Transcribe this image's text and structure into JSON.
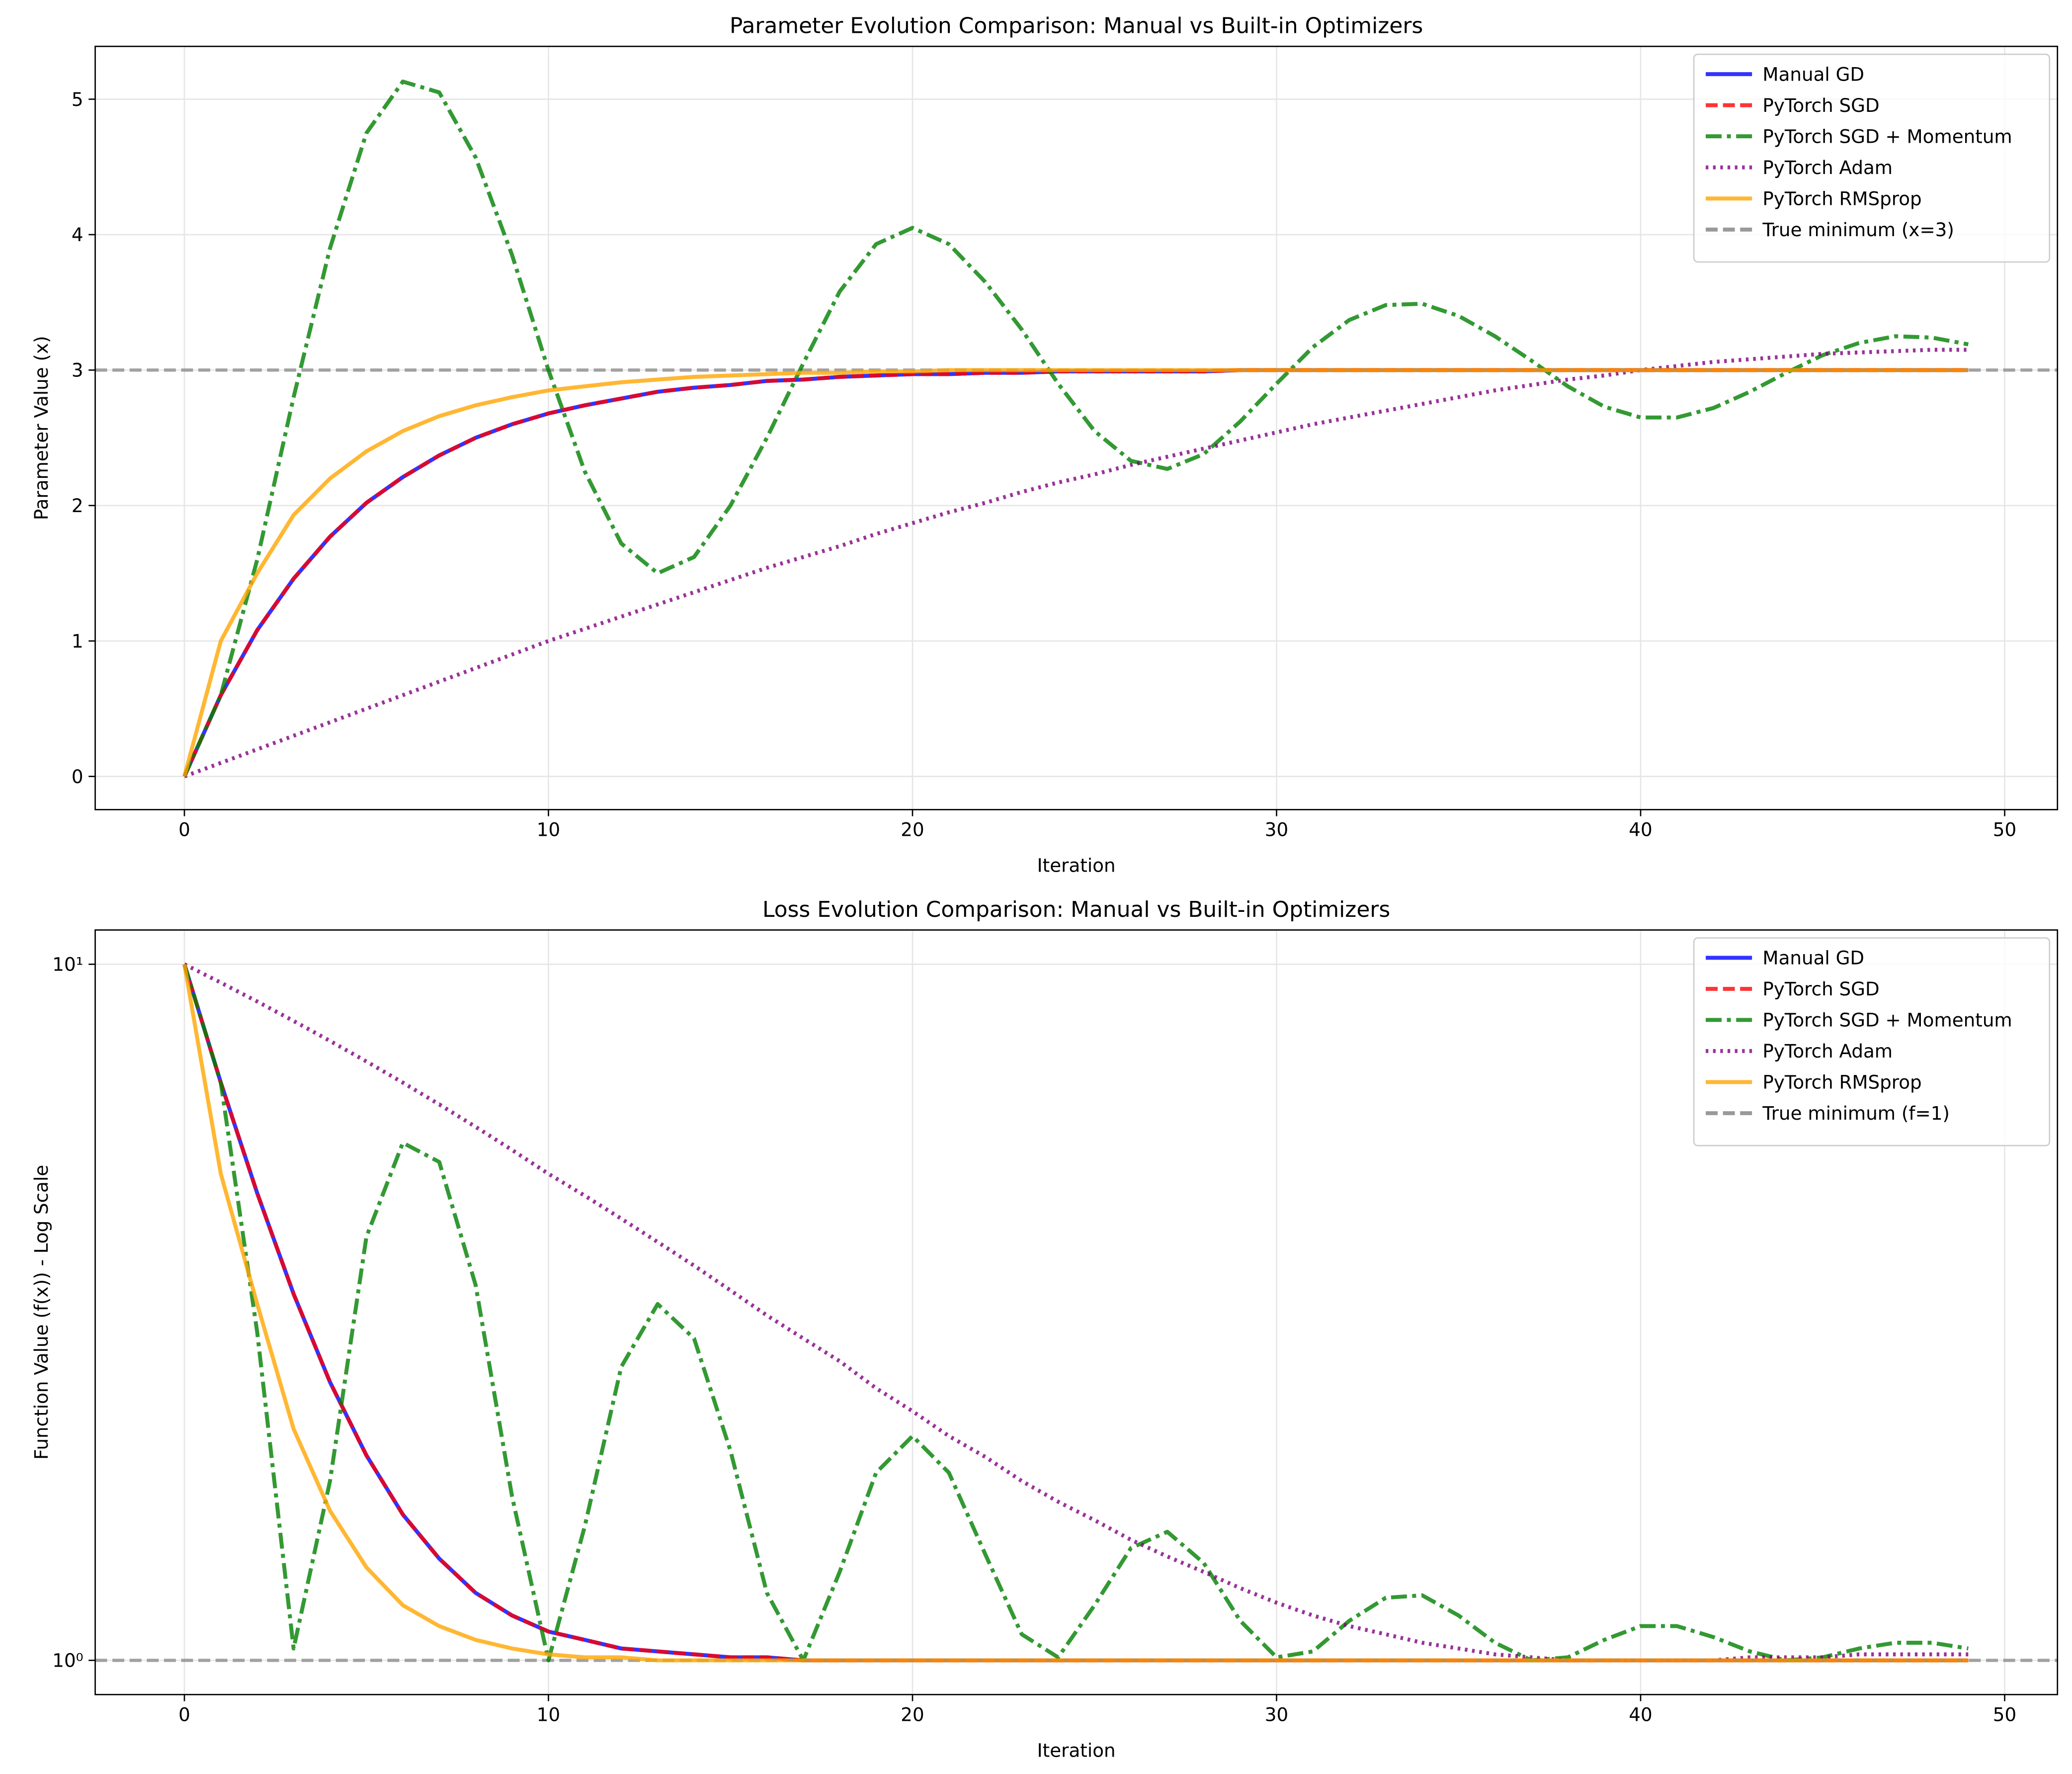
{
  "chart_data": [
    {
      "type": "line",
      "title": "Parameter Evolution Comparison: Manual vs Built-in Optimizers",
      "xlabel": "Iteration",
      "ylabel": "Parameter Value (x)",
      "x": [
        0,
        1,
        2,
        3,
        4,
        5,
        6,
        7,
        8,
        9,
        10,
        11,
        12,
        13,
        14,
        15,
        16,
        17,
        18,
        19,
        20,
        21,
        22,
        23,
        24,
        25,
        26,
        27,
        28,
        29,
        30,
        31,
        32,
        33,
        34,
        35,
        36,
        37,
        38,
        39,
        40,
        41,
        42,
        43,
        44,
        45,
        46,
        47,
        48,
        49
      ],
      "xlim": [
        -2.45,
        51.45
      ],
      "xticks": [
        0,
        10,
        20,
        30,
        40,
        50
      ],
      "ylim": [
        -0.245,
        5.39
      ],
      "yticks": [
        0,
        1,
        2,
        3,
        4,
        5
      ],
      "yscale": "linear",
      "grid": true,
      "legend": "upper right",
      "series": [
        {
          "name": "Manual GD",
          "color": "#0000ff",
          "linestyle": "solid",
          "values": [
            0,
            0.6,
            1.08,
            1.46,
            1.77,
            2.02,
            2.21,
            2.37,
            2.5,
            2.6,
            2.68,
            2.74,
            2.79,
            2.84,
            2.87,
            2.89,
            2.92,
            2.93,
            2.95,
            2.96,
            2.97,
            2.97,
            2.98,
            2.98,
            2.99,
            2.99,
            2.99,
            2.99,
            2.99,
            3,
            3,
            3,
            3,
            3,
            3,
            3,
            3,
            3,
            3,
            3,
            3,
            3,
            3,
            3,
            3,
            3,
            3,
            3,
            3,
            3
          ]
        },
        {
          "name": "PyTorch SGD",
          "color": "#ff0000",
          "linestyle": "dashed",
          "values": [
            0,
            0.6,
            1.08,
            1.46,
            1.77,
            2.02,
            2.21,
            2.37,
            2.5,
            2.6,
            2.68,
            2.74,
            2.79,
            2.84,
            2.87,
            2.89,
            2.92,
            2.93,
            2.95,
            2.96,
            2.97,
            2.97,
            2.98,
            2.98,
            2.99,
            2.99,
            2.99,
            2.99,
            2.99,
            3,
            3,
            3,
            3,
            3,
            3,
            3,
            3,
            3,
            3,
            3,
            3,
            3,
            3,
            3,
            3,
            3,
            3,
            3,
            3,
            3
          ]
        },
        {
          "name": "PyTorch SGD + Momentum",
          "color": "#008000",
          "linestyle": "dashdot",
          "values": [
            0,
            0.6,
            1.6,
            2.8,
            3.9,
            4.75,
            5.13,
            5.05,
            4.57,
            3.85,
            3.0,
            2.25,
            1.72,
            1.5,
            1.62,
            2.0,
            2.5,
            3.05,
            3.58,
            3.93,
            4.05,
            3.93,
            3.65,
            3.3,
            2.9,
            2.55,
            2.33,
            2.27,
            2.38,
            2.62,
            2.9,
            3.17,
            3.37,
            3.48,
            3.49,
            3.4,
            3.25,
            3.07,
            2.88,
            2.73,
            2.65,
            2.65,
            2.72,
            2.84,
            2.98,
            3.11,
            3.2,
            3.25,
            3.24,
            3.19
          ]
        },
        {
          "name": "PyTorch Adam",
          "color": "#800080",
          "linestyle": "dotted",
          "values": [
            0,
            0.1,
            0.2,
            0.3,
            0.4,
            0.5,
            0.6,
            0.7,
            0.8,
            0.9,
            1.0,
            1.09,
            1.18,
            1.27,
            1.36,
            1.45,
            1.54,
            1.62,
            1.7,
            1.79,
            1.87,
            1.95,
            2.02,
            2.1,
            2.17,
            2.23,
            2.3,
            2.36,
            2.42,
            2.48,
            2.54,
            2.6,
            2.65,
            2.7,
            2.75,
            2.8,
            2.85,
            2.89,
            2.93,
            2.96,
            3.0,
            3.03,
            3.06,
            3.08,
            3.1,
            3.12,
            3.13,
            3.14,
            3.15,
            3.15
          ]
        },
        {
          "name": "PyTorch RMSprop",
          "color": "#ffa500",
          "linestyle": "solid",
          "values": [
            0,
            1.0,
            1.5,
            1.93,
            2.2,
            2.4,
            2.55,
            2.66,
            2.74,
            2.8,
            2.85,
            2.88,
            2.91,
            2.93,
            2.95,
            2.96,
            2.97,
            2.98,
            2.98,
            2.99,
            2.99,
            3,
            3,
            3,
            3,
            3,
            3,
            3,
            3,
            3,
            3,
            3,
            3,
            3,
            3,
            3,
            3,
            3,
            3,
            3,
            3,
            3,
            3,
            3,
            3,
            3,
            3,
            3,
            3,
            3
          ]
        }
      ],
      "hlines": [
        {
          "name": "True minimum (x=3)",
          "value": 3,
          "color": "#808080",
          "linestyle": "dashed"
        }
      ]
    },
    {
      "type": "line",
      "title": "Loss Evolution Comparison: Manual vs Built-in Optimizers",
      "xlabel": "Iteration",
      "ylabel": "Function Value (f(x)) - Log Scale",
      "x": [
        0,
        1,
        2,
        3,
        4,
        5,
        6,
        7,
        8,
        9,
        10,
        11,
        12,
        13,
        14,
        15,
        16,
        17,
        18,
        19,
        20,
        21,
        22,
        23,
        24,
        25,
        26,
        27,
        28,
        29,
        30,
        31,
        32,
        33,
        34,
        35,
        36,
        37,
        38,
        39,
        40,
        41,
        42,
        43,
        44,
        45,
        46,
        47,
        48,
        49
      ],
      "xlim": [
        -2.45,
        51.45
      ],
      "xticks": [
        0,
        10,
        20,
        30,
        40,
        50
      ],
      "ylim": [
        0.893,
        11.2
      ],
      "yticks": [
        {
          "value": 1,
          "label": "10⁰"
        },
        {
          "value": 10,
          "label": "10¹"
        }
      ],
      "yscale": "log",
      "grid": true,
      "legend": "upper right",
      "series": [
        {
          "name": "Manual GD",
          "color": "#0000ff",
          "linestyle": "solid",
          "values": [
            10,
            6.76,
            4.69,
            3.36,
            2.51,
            1.97,
            1.62,
            1.4,
            1.25,
            1.16,
            1.1,
            1.07,
            1.04,
            1.03,
            1.02,
            1.01,
            1.01,
            1,
            1,
            1,
            1,
            1,
            1,
            1,
            1,
            1,
            1,
            1,
            1,
            1,
            1,
            1,
            1,
            1,
            1,
            1,
            1,
            1,
            1,
            1,
            1,
            1,
            1,
            1,
            1,
            1,
            1,
            1,
            1,
            1
          ]
        },
        {
          "name": "PyTorch SGD",
          "color": "#ff0000",
          "linestyle": "dashed",
          "values": [
            10,
            6.76,
            4.69,
            3.36,
            2.51,
            1.97,
            1.62,
            1.4,
            1.25,
            1.16,
            1.1,
            1.07,
            1.04,
            1.03,
            1.02,
            1.01,
            1.01,
            1,
            1,
            1,
            1,
            1,
            1,
            1,
            1,
            1,
            1,
            1,
            1,
            1,
            1,
            1,
            1,
            1,
            1,
            1,
            1,
            1,
            1,
            1,
            1,
            1,
            1,
            1,
            1,
            1,
            1,
            1,
            1,
            1
          ]
        },
        {
          "name": "PyTorch SGD + Momentum",
          "color": "#008000",
          "linestyle": "dashdot",
          "values": [
            10,
            6.76,
            2.96,
            1.04,
            1.81,
            4.06,
            5.54,
            5.2,
            3.46,
            1.72,
            1.0,
            1.56,
            2.64,
            3.25,
            2.9,
            2.0,
            1.25,
            1.0,
            1.34,
            1.86,
            2.1,
            1.86,
            1.42,
            1.09,
            1.01,
            1.2,
            1.45,
            1.53,
            1.38,
            1.14,
            1.01,
            1.03,
            1.14,
            1.23,
            1.24,
            1.16,
            1.06,
            1.0,
            1.01,
            1.07,
            1.12,
            1.12,
            1.08,
            1.03,
            1.0,
            1.01,
            1.04,
            1.06,
            1.06,
            1.04
          ]
        },
        {
          "name": "PyTorch Adam",
          "color": "#800080",
          "linestyle": "dotted",
          "values": [
            10,
            9.41,
            8.84,
            8.29,
            7.76,
            7.25,
            6.76,
            6.29,
            5.84,
            5.41,
            5.0,
            4.65,
            4.31,
            3.99,
            3.69,
            3.4,
            3.13,
            2.9,
            2.69,
            2.46,
            2.28,
            2.1,
            1.96,
            1.81,
            1.69,
            1.59,
            1.49,
            1.41,
            1.34,
            1.27,
            1.21,
            1.16,
            1.12,
            1.09,
            1.06,
            1.04,
            1.02,
            1.01,
            1,
            1,
            1,
            1,
            1,
            1.01,
            1.01,
            1.01,
            1.02,
            1.02,
            1.02,
            1.02
          ]
        },
        {
          "name": "PyTorch RMSprop",
          "color": "#ffa500",
          "linestyle": "solid",
          "values": [
            10,
            5,
            3.25,
            2.15,
            1.64,
            1.36,
            1.2,
            1.12,
            1.07,
            1.04,
            1.02,
            1.01,
            1.01,
            1,
            1,
            1,
            1,
            1,
            1,
            1,
            1,
            1,
            1,
            1,
            1,
            1,
            1,
            1,
            1,
            1,
            1,
            1,
            1,
            1,
            1,
            1,
            1,
            1,
            1,
            1,
            1,
            1,
            1,
            1,
            1,
            1,
            1,
            1,
            1,
            1
          ]
        }
      ],
      "hlines": [
        {
          "name": "True minimum (f=1)",
          "value": 1,
          "color": "#808080",
          "linestyle": "dashed"
        }
      ]
    }
  ]
}
